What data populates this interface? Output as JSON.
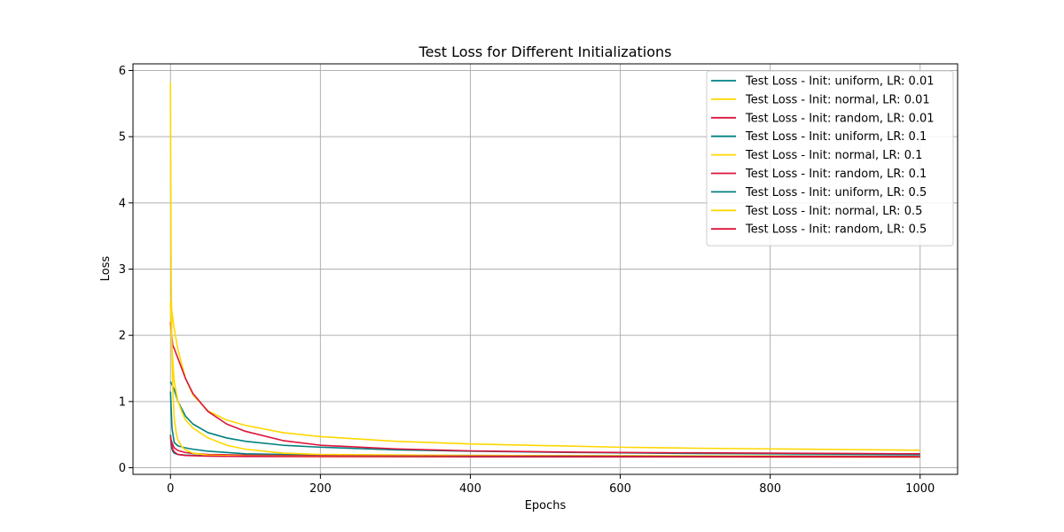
{
  "chart_data": {
    "type": "line",
    "title": "Test Loss for Different Initializations",
    "xlabel": "Epochs",
    "ylabel": "Loss",
    "xlim": [
      -50,
      1050
    ],
    "ylim": [
      -0.1,
      6.1
    ],
    "xticks": [
      0,
      200,
      400,
      600,
      800,
      1000
    ],
    "yticks": [
      0,
      1,
      2,
      3,
      4,
      5,
      6
    ],
    "grid": true,
    "legend_position": "top-right",
    "series": [
      {
        "name": "Test Loss - Init: uniform, LR: 0.01",
        "color": "#008080",
        "x": [
          0,
          5,
          10,
          20,
          30,
          50,
          75,
          100,
          150,
          200,
          300,
          400,
          500,
          600,
          700,
          800,
          900,
          1000
        ],
        "y": [
          1.3,
          1.18,
          1.0,
          0.78,
          0.66,
          0.53,
          0.45,
          0.4,
          0.34,
          0.31,
          0.27,
          0.25,
          0.235,
          0.225,
          0.215,
          0.21,
          0.205,
          0.2
        ]
      },
      {
        "name": "Test Loss - Init: normal, LR: 0.01",
        "color": "#FFD700",
        "x": [
          0,
          2,
          5,
          10,
          20,
          30,
          50,
          75,
          100,
          150,
          200,
          300,
          400,
          500,
          600,
          700,
          800,
          900,
          1000
        ],
        "y": [
          2.5,
          2.35,
          2.1,
          1.78,
          1.35,
          1.1,
          0.86,
          0.72,
          0.64,
          0.53,
          0.47,
          0.4,
          0.36,
          0.335,
          0.31,
          0.295,
          0.285,
          0.275,
          0.265
        ]
      },
      {
        "name": "Test Loss - Init: random, LR: 0.01",
        "color": "#DC143C",
        "x": [
          0,
          3,
          5,
          10,
          20,
          30,
          50,
          75,
          100,
          150,
          200,
          300,
          400,
          500,
          600,
          700,
          800,
          900,
          1000
        ],
        "y": [
          2.2,
          1.85,
          1.8,
          1.65,
          1.35,
          1.12,
          0.85,
          0.66,
          0.55,
          0.41,
          0.34,
          0.285,
          0.255,
          0.24,
          0.23,
          0.225,
          0.22,
          0.215,
          0.21
        ]
      },
      {
        "name": "Test Loss - Init: uniform, LR: 0.1",
        "color": "#008080",
        "x": [
          0,
          2,
          5,
          10,
          20,
          30,
          50,
          100,
          200,
          400,
          600,
          800,
          1000
        ],
        "y": [
          1.15,
          0.6,
          0.38,
          0.33,
          0.3,
          0.28,
          0.25,
          0.21,
          0.19,
          0.185,
          0.18,
          0.178,
          0.176
        ]
      },
      {
        "name": "Test Loss - Init: normal, LR: 0.1",
        "color": "#FFD700",
        "x": [
          0,
          2,
          5,
          10,
          15,
          20,
          30,
          50,
          75,
          100,
          150,
          200,
          400,
          600,
          800,
          1000
        ],
        "y": [
          2.5,
          1.8,
          1.3,
          1.0,
          0.85,
          0.72,
          0.6,
          0.45,
          0.34,
          0.28,
          0.22,
          0.2,
          0.185,
          0.18,
          0.175,
          0.17
        ]
      },
      {
        "name": "Test Loss - Init: random, LR: 0.1",
        "color": "#DC143C",
        "x": [
          0,
          2,
          5,
          10,
          20,
          30,
          50,
          100,
          200,
          400,
          600,
          800,
          1000
        ],
        "y": [
          0.45,
          0.38,
          0.3,
          0.26,
          0.23,
          0.215,
          0.2,
          0.19,
          0.18,
          0.175,
          0.172,
          0.17,
          0.168
        ]
      },
      {
        "name": "Test Loss - Init: uniform, LR: 0.5",
        "color": "#008080",
        "x": [
          0,
          1,
          2,
          3,
          5,
          10,
          20,
          50,
          100,
          200,
          400,
          600,
          800,
          1000
        ],
        "y": [
          0.5,
          0.35,
          0.28,
          0.25,
          0.22,
          0.2,
          0.19,
          0.18,
          0.175,
          0.172,
          0.17,
          0.168,
          0.166,
          0.165
        ]
      },
      {
        "name": "Test Loss - Init: normal, LR: 0.5",
        "color": "#FFD700",
        "x": [
          0,
          0.5,
          1,
          2,
          3,
          5,
          8,
          10,
          15,
          20,
          30,
          50,
          100,
          200,
          400,
          600,
          800,
          1000
        ],
        "y": [
          5.82,
          4.0,
          2.9,
          1.7,
          1.2,
          0.75,
          0.5,
          0.42,
          0.32,
          0.27,
          0.22,
          0.19,
          0.175,
          0.17,
          0.165,
          0.163,
          0.162,
          0.16
        ]
      },
      {
        "name": "Test Loss - Init: random, LR: 0.5",
        "color": "#DC143C",
        "x": [
          0,
          1,
          2,
          3,
          5,
          10,
          20,
          50,
          100,
          200,
          400,
          600,
          800,
          1000
        ],
        "y": [
          0.48,
          0.4,
          0.33,
          0.28,
          0.24,
          0.2,
          0.185,
          0.175,
          0.17,
          0.168,
          0.166,
          0.165,
          0.164,
          0.163
        ]
      }
    ]
  }
}
